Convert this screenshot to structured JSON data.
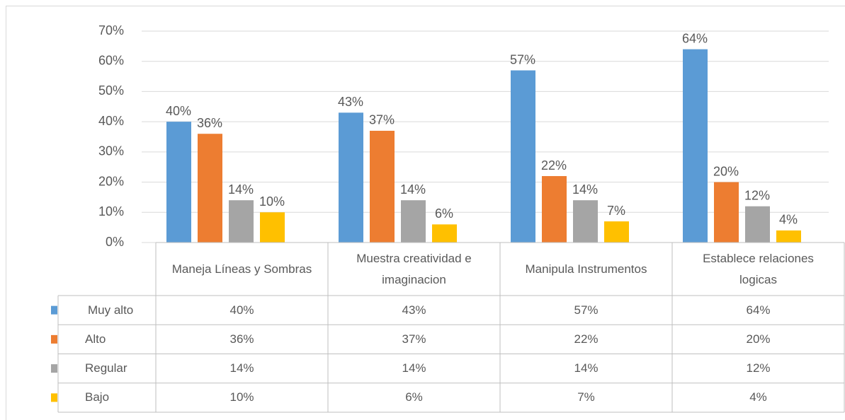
{
  "chart_data": {
    "type": "bar",
    "categories": [
      "Maneja Líneas y Sombras",
      "Muestra creatividad e imaginacion",
      "Manipula Instrumentos",
      "Establece relaciones logicas"
    ],
    "series": [
      {
        "name": "Muy alto",
        "color": "#5b9bd5",
        "values": [
          40,
          43,
          57,
          64
        ],
        "value_labels": [
          "40%",
          "43%",
          "57%",
          "64%"
        ]
      },
      {
        "name": "Alto",
        "color": "#ed7d31",
        "values": [
          36,
          37,
          22,
          20
        ],
        "value_labels": [
          "36%",
          "37%",
          "22%",
          "20%"
        ]
      },
      {
        "name": "Regular",
        "color": "#a5a5a5",
        "values": [
          14,
          14,
          14,
          12
        ],
        "value_labels": [
          "14%",
          "14%",
          "14%",
          "12%"
        ]
      },
      {
        "name": "Bajo",
        "color": "#ffc000",
        "values": [
          10,
          6,
          7,
          4
        ],
        "value_labels": [
          "10%",
          "6%",
          "7%",
          "4%"
        ]
      }
    ],
    "ylim": [
      0,
      70
    ],
    "yticks": [
      {
        "value": 0,
        "label": "0%"
      },
      {
        "value": 10,
        "label": "10%"
      },
      {
        "value": 20,
        "label": "20%"
      },
      {
        "value": 30,
        "label": "30%"
      },
      {
        "value": 40,
        "label": "40%"
      },
      {
        "value": 50,
        "label": "50%"
      },
      {
        "value": 60,
        "label": "60%"
      },
      {
        "value": 70,
        "label": "70%"
      }
    ],
    "grid": true,
    "legend": "table"
  }
}
